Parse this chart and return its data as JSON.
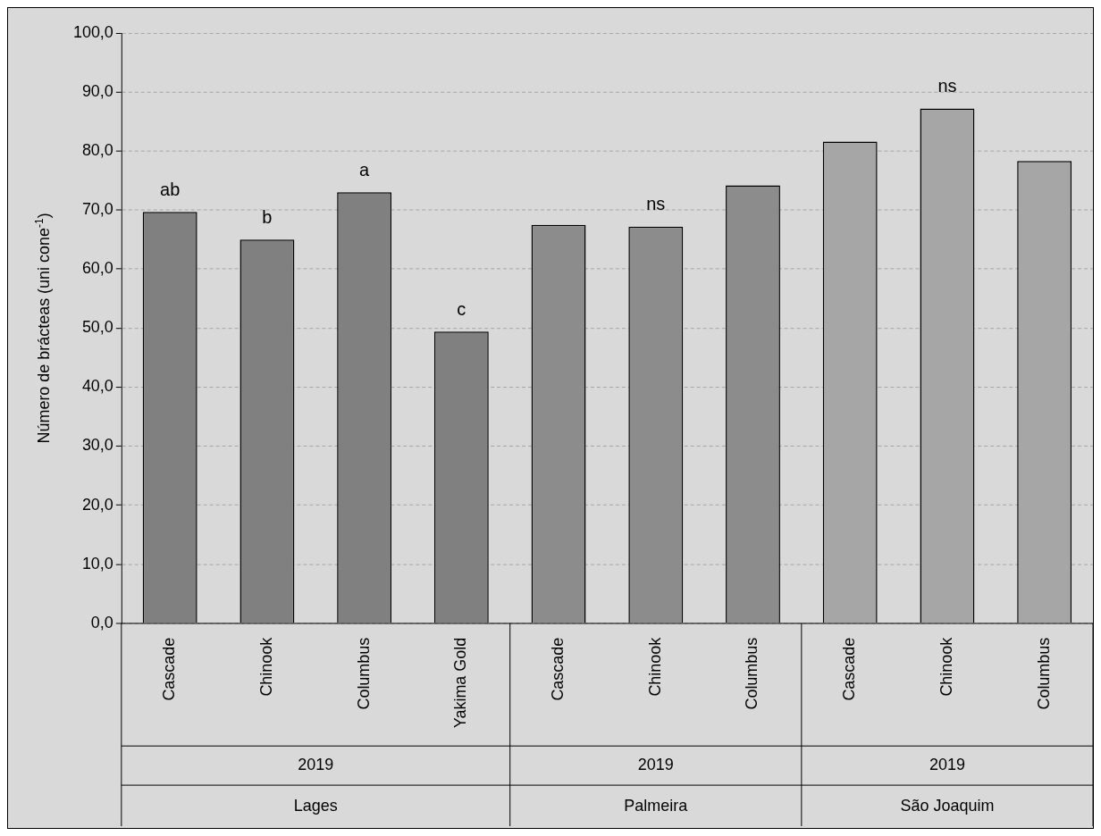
{
  "chart_data": {
    "type": "bar",
    "ylabel": "Número de brácteas (uni cone$^{-1}$)",
    "categories": [
      "Cascade",
      "Chinook",
      "Columbus",
      "Yakima Gold",
      "Cascade",
      "Chinook",
      "Columbus",
      "Cascade",
      "Chinook",
      "Columbus"
    ],
    "series": [
      {
        "color": "#808080",
        "values": [
          69.7,
          65.0,
          73.0,
          49.4,
          null,
          null,
          null,
          null,
          null,
          null
        ],
        "value_labels": [
          "ab",
          "b",
          "a",
          "c",
          null,
          null,
          null,
          null,
          null,
          null
        ]
      },
      {
        "color": "#8c8c8c",
        "values": [
          null,
          null,
          null,
          null,
          67.5,
          67.2,
          74.2,
          null,
          null,
          null
        ],
        "value_labels": [
          null,
          null,
          null,
          null,
          null,
          "ns",
          null,
          null,
          null,
          null
        ]
      },
      {
        "color": "#a6a6a6",
        "values": [
          null,
          null,
          null,
          null,
          null,
          null,
          null,
          81.6,
          87.2,
          78.3
        ],
        "value_labels": [
          null,
          null,
          null,
          null,
          null,
          null,
          null,
          null,
          "ns",
          null
        ]
      }
    ],
    "annotations": [
      "2019",
      "Lages",
      "2019",
      "Palmeira",
      "2019",
      "São Joaquim"
    ],
    "ylim": [
      0,
      100
    ],
    "yticks": [
      {
        "value": 0,
        "label": "0,0"
      },
      {
        "value": 10,
        "label": "10,0"
      },
      {
        "value": 20,
        "label": "20,0"
      },
      {
        "value": 30,
        "label": "30,0"
      },
      {
        "value": 40,
        "label": "40,0"
      },
      {
        "value": 50,
        "label": "50,0"
      },
      {
        "value": 60,
        "label": "60,0"
      },
      {
        "value": 70,
        "label": "70,0"
      },
      {
        "value": 80,
        "label": "80,0"
      },
      {
        "value": 90,
        "label": "90,0"
      },
      {
        "value": 100,
        "label": "100,0"
      }
    ],
    "grid": "y",
    "legend": false
  }
}
